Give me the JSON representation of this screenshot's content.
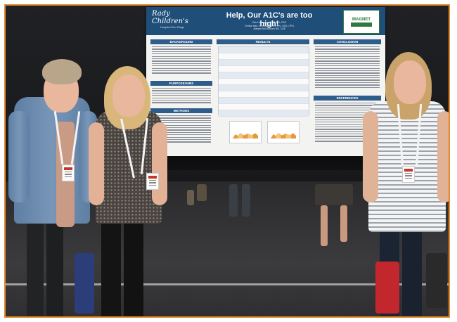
{
  "photo": {
    "poster": {
      "hospital_name": "Rady Children's",
      "hospital_subtitle": "Hospital San Diego",
      "title": "Help, Our A1C's are too high!",
      "authors": [
        "Deb Heneghan BSN, RN, CDE",
        "Denise Barr-Yeneboza MSN, RN, CNS, CPN",
        "Jeannie McCracken RN, CDE"
      ],
      "magnet_badge": "MAGNET",
      "sections": [
        "BACKGROUND",
        "PURPOSE/AIMS",
        "METHODS",
        "RESULTS",
        "CONCLUSION",
        "REFERENCES"
      ]
    },
    "colors": {
      "frame": "#e8892b",
      "poster_header": "#1f4e79",
      "section_header": "#2e5d8c"
    }
  }
}
